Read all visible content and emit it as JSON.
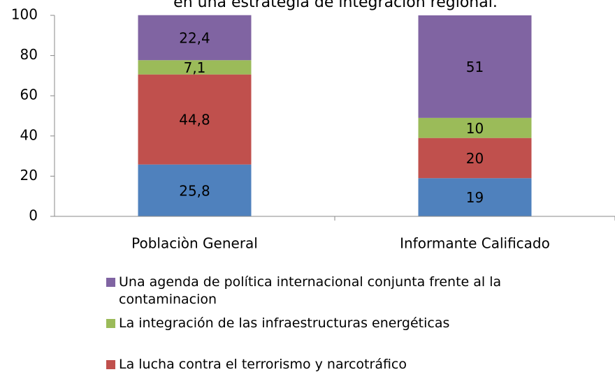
{
  "chart_data": {
    "type": "bar",
    "stacked": true,
    "title": "en una estrategia de integración regional.",
    "categories": [
      "Poblaciòn General",
      "Informante Calificado"
    ],
    "series": [
      {
        "color": "#4f81bd",
        "values": [
          25.8,
          19
        ],
        "value_labels": [
          "25,8",
          "19"
        ]
      },
      {
        "name": "La lucha contra el terrorismo y narcotráfico",
        "color": "#c0504d",
        "values": [
          44.8,
          20
        ],
        "value_labels": [
          "44,8",
          "20"
        ]
      },
      {
        "name": "La integración de las infraestructuras energéticas",
        "color": "#9bbb59",
        "values": [
          7.1,
          10
        ],
        "value_labels": [
          "7,1",
          "10"
        ]
      },
      {
        "name": "Una agenda de política internacional conjunta frente al la contaminacion",
        "color": "#8064a2",
        "values": [
          22.4,
          51
        ],
        "value_labels": [
          "22,4",
          "51"
        ]
      }
    ],
    "ylim": [
      0,
      100
    ],
    "yticks": [
      0,
      20,
      40,
      60,
      80,
      100
    ]
  }
}
